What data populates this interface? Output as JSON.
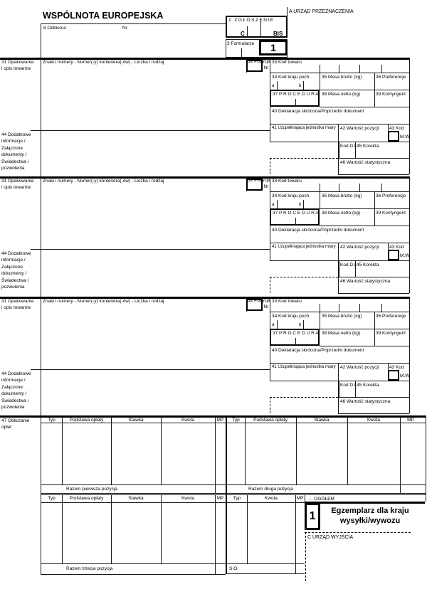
{
  "header": {
    "title": "WSPÓLNOTA EUROPEJSKA",
    "box8_label": "8 Odbiorca",
    "nr_label": "Nr",
    "box1_label": "1 ZGŁOSZENIE",
    "box1_c": "C",
    "box1_bis": "BIS",
    "box3_label": "3 Formularze",
    "box3_value": "1",
    "office_a_label": "A URZĄD PRZEZNACZENIA"
  },
  "item": {
    "box31_label": "31 Opakowania\ni opis towarów",
    "box31_header": "Znaki i numery - Numer(-y) kontenera(-ów) - Liczba i rodzaj",
    "box32_label": "32 Pozycja",
    "box32_nr": "Nr",
    "box33_label": "33 Kod towaru",
    "box34_label": "34 Kod kraju poch.",
    "box34_a": "a",
    "box34_b": "b",
    "box35_label": "35 Masa brutto (kg)",
    "box36_label": "36 Preferencje",
    "box37_label": "37 P R O C E D U R A",
    "box38_label": "38 Masa netto (kg)",
    "box39_label": "39 Kontyngent",
    "box40_label": "40 Deklaracja skrócona/Poprzedni dokument",
    "box41_label": "41 Uzupełniająca jednostka miary",
    "box42_label": "42 Wartość pozycji",
    "box43_label": "43 Kod",
    "box43_mw": "M.W.",
    "box44_label": "44 Dodatkowe\ninformacje /\nZałączone\ndokumenty /\nŚwiadectwa i\npozwolenia",
    "kod_di_label": "Kod D.I.",
    "box45_label": "45 Korekta",
    "box46_label": "46 Wartość statystyczna"
  },
  "charges": {
    "box47_label": "47 Obliczanie\nopłat",
    "col_typ": "Typ",
    "col_podstawa": "Podstawa opłaty",
    "col_stawka": "Stawka",
    "col_kwota": "Kwota",
    "col_mp": "MP",
    "razem1": "Razem pierwsza pozycja",
    "razem2": "Razem druga pozycja",
    "razem3": "Razem trzecia pozycja",
    "ogolem": "← OGÓŁEM",
    "so": "S.O."
  },
  "footer": {
    "copy_number": "1",
    "copy_label": "Egzemplarz dla kraju\nwysyłki/wywozu",
    "office_c_label": "C URZĄD WYJŚCIA"
  }
}
